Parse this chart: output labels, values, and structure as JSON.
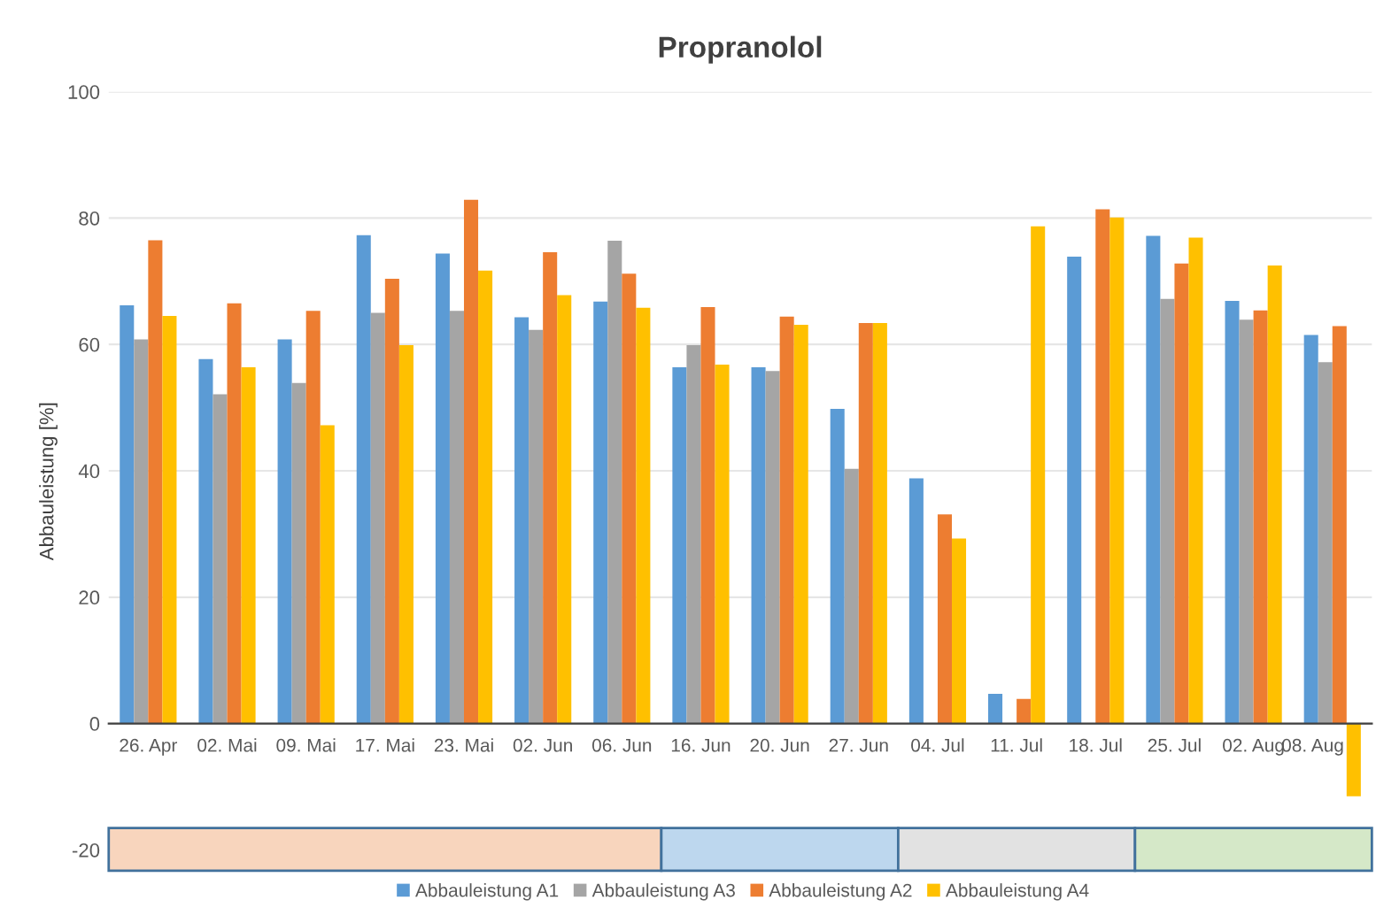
{
  "chart_data": {
    "type": "bar",
    "title": "Propranolol",
    "ylabel": "Abbauleistung [%]",
    "categories": [
      "26. Apr",
      "02. Mai",
      "09. Mai",
      "17. Mai",
      "23. Mai",
      "02. Jun",
      "06. Jun",
      "16. Jun",
      "20. Jun",
      "27. Jun",
      "04. Jul",
      "11. Jul",
      "18. Jul",
      "25. Jul",
      "02. Aug",
      "08. Aug"
    ],
    "series": [
      {
        "name": "Abbauleistung A1",
        "color": "#5b9bd5",
        "values": [
          66.2,
          57.7,
          60.8,
          77.3,
          74.4,
          64.3,
          66.8,
          56.4,
          56.4,
          49.8,
          38.8,
          4.7,
          73.9,
          77.2,
          66.9,
          61.5
        ]
      },
      {
        "name": "Abbauleistung A3",
        "color": "#a5a5a5",
        "values": [
          60.8,
          52.1,
          53.9,
          65.0,
          65.3,
          62.3,
          76.4,
          59.9,
          55.8,
          40.3,
          null,
          null,
          null,
          67.2,
          63.9,
          57.2
        ]
      },
      {
        "name": "Abbauleistung A2",
        "color": "#ed7d31",
        "values": [
          76.5,
          66.5,
          65.3,
          70.4,
          82.9,
          74.6,
          71.2,
          65.9,
          64.4,
          63.4,
          33.1,
          3.9,
          81.4,
          72.8,
          65.4,
          62.9
        ]
      },
      {
        "name": "Abbauleistung A4",
        "color": "#ffc000",
        "values": [
          64.5,
          56.4,
          47.2,
          59.9,
          71.7,
          67.8,
          65.8,
          56.8,
          63.1,
          63.4,
          29.3,
          78.7,
          80.1,
          76.9,
          72.5,
          -11.5
        ]
      }
    ],
    "ylim": [
      -23.3,
      100
    ],
    "yticks": [
      -20,
      0,
      20,
      40,
      60,
      80,
      100
    ],
    "grid": "y",
    "legend": "bottom",
    "bands": [
      {
        "axis": "x",
        "from": "26. Apr",
        "to": "06. Jun",
        "color": "#f8d5bd"
      },
      {
        "axis": "x",
        "from": "16. Jun",
        "to": "27. Jun",
        "color": "#bdd7ee"
      },
      {
        "axis": "x",
        "from": "04. Jul",
        "to": "18. Jul",
        "color": "#e2e2e2"
      },
      {
        "axis": "x",
        "from": "25. Jul",
        "to": "08. Aug",
        "color": "#d5e8c8"
      }
    ]
  }
}
